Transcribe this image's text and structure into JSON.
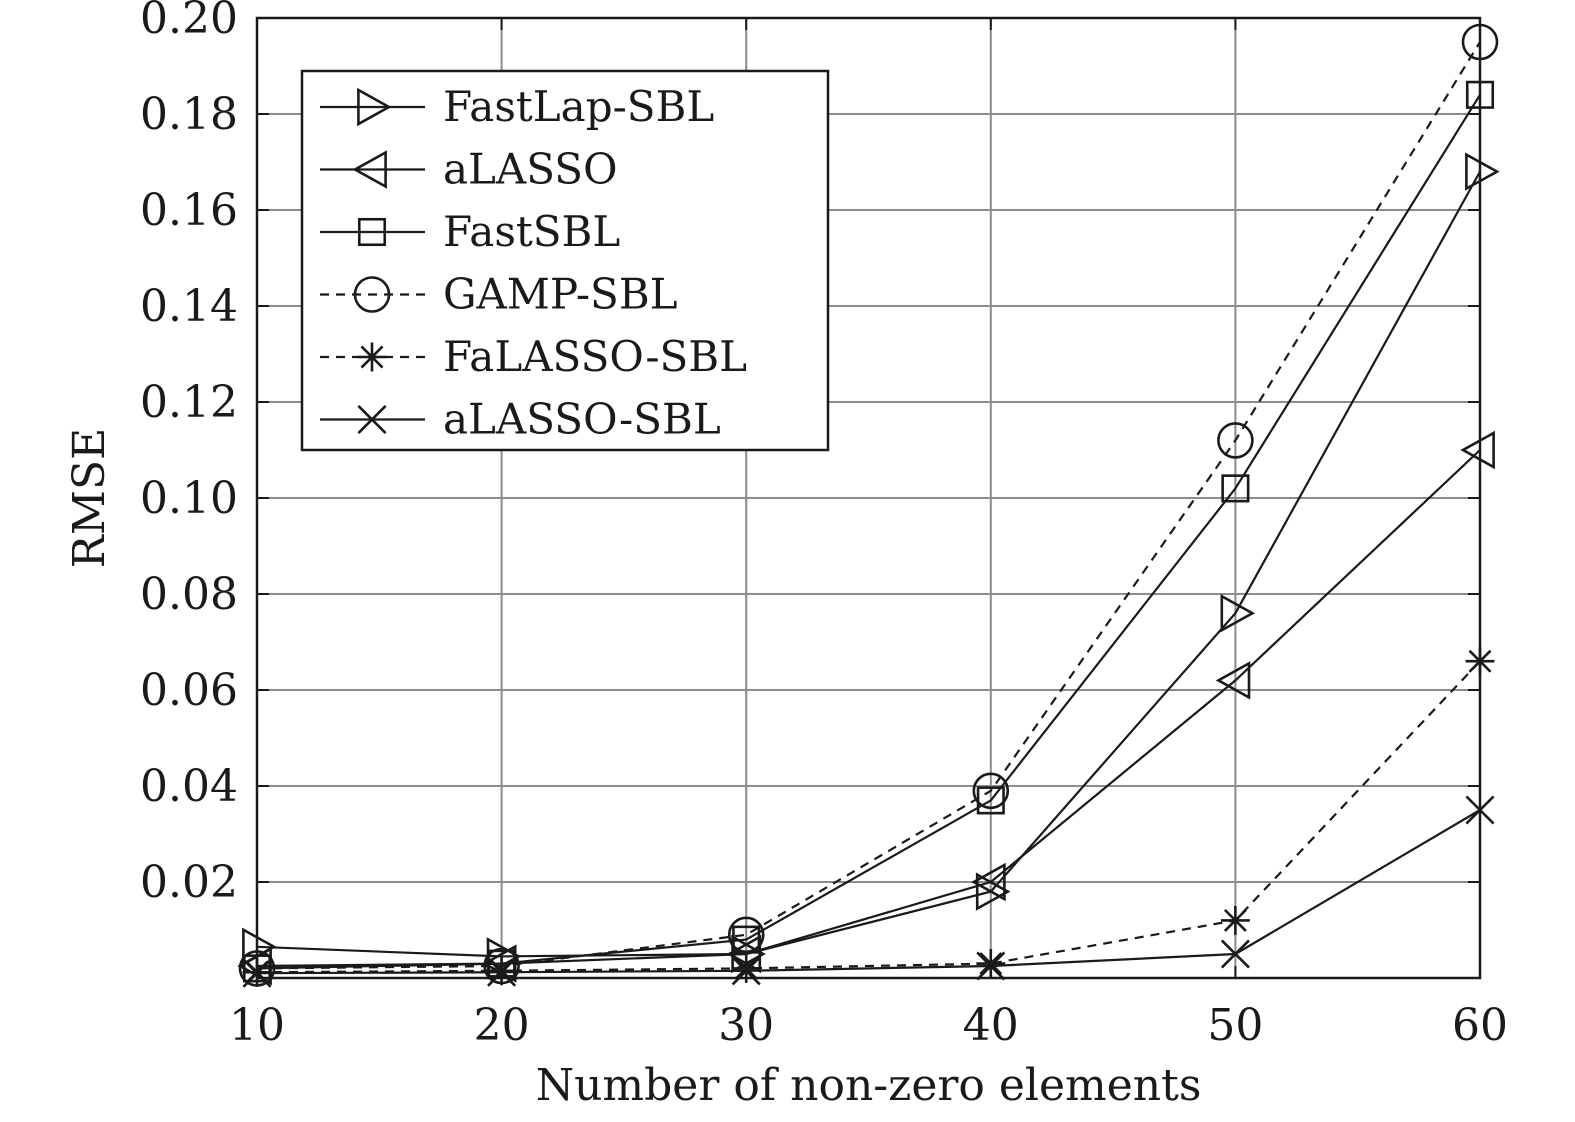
{
  "chart_data": {
    "type": "line",
    "title": "",
    "xlabel": "Number of non-zero elements",
    "ylabel": "RMSE",
    "x": [
      10,
      20,
      30,
      40,
      50,
      60
    ],
    "xlim": [
      10,
      60
    ],
    "ylim": [
      0,
      0.2
    ],
    "xticks": [
      "10",
      "20",
      "30",
      "40",
      "50",
      "60"
    ],
    "yticks": [
      "0.02",
      "0.04",
      "0.06",
      "0.08",
      "0.10",
      "0.12",
      "0.14",
      "0.16",
      "0.18",
      "0.20"
    ],
    "ytick_values": [
      0.02,
      0.04,
      0.06,
      0.08,
      0.1,
      0.12,
      0.14,
      0.16,
      0.18,
      0.2
    ],
    "grid": true,
    "legend_position": "top-left",
    "series": [
      {
        "name": "FastLap-SBL",
        "marker": "triangle-right",
        "dash": "solid",
        "values": [
          0.0065,
          0.0045,
          0.005,
          0.018,
          0.076,
          0.168
        ]
      },
      {
        "name": "aLASSO",
        "marker": "triangle-left",
        "dash": "solid",
        "values": [
          0.0025,
          0.003,
          0.005,
          0.02,
          0.062,
          0.11
        ]
      },
      {
        "name": "FastSBL",
        "marker": "square",
        "dash": "solid",
        "values": [
          0.002,
          0.003,
          0.008,
          0.037,
          0.102,
          0.184
        ]
      },
      {
        "name": "GAMP-SBL",
        "marker": "circle",
        "dash": "dashed",
        "values": [
          0.002,
          0.0025,
          0.009,
          0.039,
          0.112,
          0.195
        ]
      },
      {
        "name": "FaLASSO-SBL",
        "marker": "asterisk",
        "dash": "dashed",
        "values": [
          0.0012,
          0.0015,
          0.002,
          0.003,
          0.012,
          0.066
        ]
      },
      {
        "name": "aLASSO-SBL",
        "marker": "cross",
        "dash": "solid",
        "values": [
          0.001,
          0.0012,
          0.0015,
          0.0025,
          0.005,
          0.035
        ]
      }
    ]
  }
}
